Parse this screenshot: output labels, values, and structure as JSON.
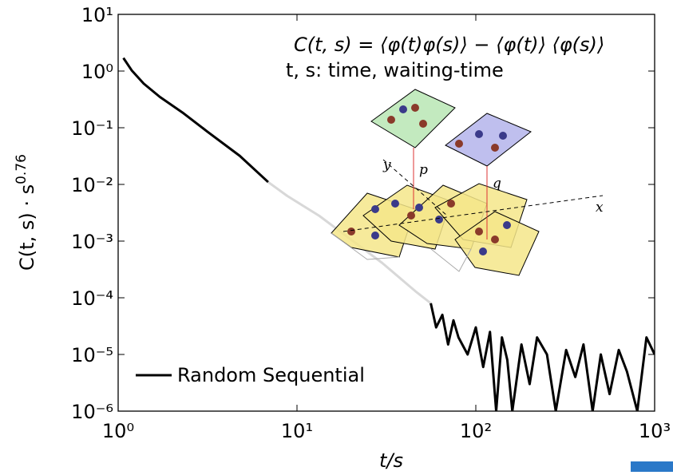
{
  "chart_data": {
    "type": "line",
    "x_label": "t/s",
    "y_label": "C(t, s) · s",
    "y_label_exponent": "0.76",
    "annotations": [
      "C(t, s) = ⟨φ(t)φ(s)⟩ − ⟨φ(t)⟩ ⟨φ(s)⟩",
      "t, s: time, waiting-time"
    ],
    "diagram_labels": [
      "p",
      "q",
      "x",
      "y"
    ],
    "x": [
      1.07,
      1.19,
      1.39,
      1.71,
      2.32,
      3.16,
      4.78,
      6.9,
      8.8,
      13.3,
      20,
      30,
      46,
      56,
      60,
      65,
      70,
      75,
      80,
      90,
      100,
      110,
      120,
      130,
      140,
      150,
      160,
      180,
      200,
      220,
      250,
      280,
      320,
      360,
      400,
      450,
      500,
      560,
      630,
      700,
      800,
      900,
      1000
    ],
    "series": [
      {
        "name": "Random Sequential",
        "color": "#000000",
        "values": [
          1.7,
          1.03,
          0.6,
          0.35,
          0.18,
          0.085,
          0.032,
          0.011,
          null,
          null,
          null,
          null,
          null,
          8e-05,
          3e-05,
          5e-05,
          1.5e-05,
          4e-05,
          2e-05,
          1e-05,
          3e-05,
          6e-06,
          2.5e-05,
          1e-06,
          2e-05,
          8e-06,
          1e-06,
          1.5e-05,
          3e-06,
          2e-05,
          1e-05,
          1e-06,
          1.2e-05,
          4e-06,
          1.5e-05,
          1e-06,
          1e-05,
          2e-06,
          1.2e-05,
          5e-06,
          1e-06,
          2e-05,
          1e-05
        ]
      },
      {
        "color": "#d8d8d8",
        "values": [
          null,
          null,
          null,
          null,
          null,
          null,
          null,
          0.011,
          0.0063,
          0.0028,
          0.00107,
          0.00041,
          0.00013,
          8e-05,
          null,
          null,
          null,
          null,
          null,
          null,
          null,
          null,
          null,
          null,
          null,
          null,
          null,
          null,
          null,
          null,
          null,
          null,
          null,
          null,
          null,
          null,
          null,
          null,
          null,
          null,
          null,
          null,
          null
        ]
      }
    ],
    "xlim": [
      1,
      1000
    ],
    "ylim": [
      1e-06,
      10
    ],
    "log_x": true,
    "log_y": true,
    "xticks": [
      {
        "value": 1,
        "label": "10⁰"
      },
      {
        "value": 10,
        "label": "10¹"
      },
      {
        "value": 100,
        "label": "10²"
      },
      {
        "value": 1000,
        "label": "10³"
      }
    ],
    "yticks": [
      {
        "value": 1e-06,
        "label": "10⁻⁶"
      },
      {
        "value": 1e-05,
        "label": "10⁻⁵"
      },
      {
        "value": 0.0001,
        "label": "10⁻⁴"
      },
      {
        "value": 0.001,
        "label": "10⁻³"
      },
      {
        "value": 0.01,
        "label": "10⁻²"
      },
      {
        "value": 0.1,
        "label": "10⁻¹"
      },
      {
        "value": 1,
        "label": "10⁰"
      },
      {
        "value": 10,
        "label": "10¹"
      }
    ],
    "legend": "lower left"
  }
}
